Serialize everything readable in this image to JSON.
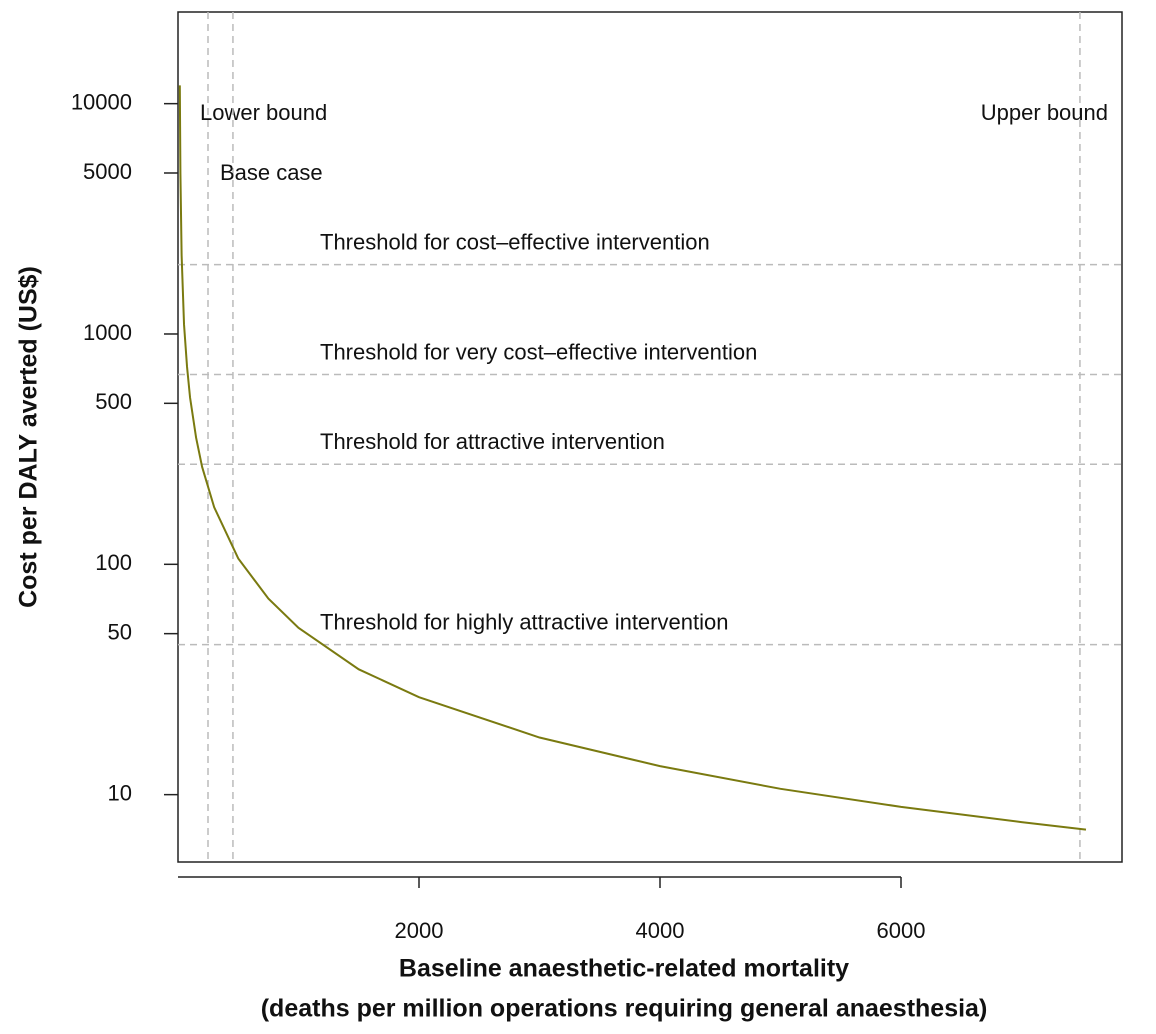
{
  "chart_data": {
    "type": "line",
    "xlabel": [
      "Baseline anaesthetic-related mortality",
      "(deaths per million operations requiring general anaesthesia)"
    ],
    "ylabel": "Cost per DALY averted (US$)",
    "x": [
      15,
      20,
      30,
      50,
      75,
      100,
      150,
      200,
      300,
      500,
      750,
      1000,
      1500,
      2000,
      3000,
      4000,
      5000,
      6000,
      7000,
      7535
    ],
    "series": [
      {
        "color": "#7a7a10",
        "values": [
          12000,
          5000,
          2200,
          1100,
          720,
          530,
          355,
          265,
          177,
          106,
          71,
          53,
          35,
          26.5,
          17.7,
          13.3,
          10.6,
          8.85,
          7.6,
          7.05
        ]
      }
    ],
    "xlim": [
      0,
      7834
    ],
    "xticks": [
      2000,
      4000,
      6000
    ],
    "ylim": [
      5.1,
      25000
    ],
    "yticks": [
      10,
      50,
      100,
      500,
      1000,
      5000,
      10000
    ],
    "ylog": true,
    "vlines": [
      {
        "value": 249,
        "label": "Lower bound"
      },
      {
        "value": 456,
        "label": "Base case"
      },
      {
        "value": 7485,
        "label": "Upper bound"
      }
    ],
    "hlines": [
      {
        "value": 2000,
        "label": "Threshold for cost–effective intervention"
      },
      {
        "value": 667,
        "label": "Threshold for very cost–effective intervention"
      },
      {
        "value": 272,
        "label": "Threshold for attractive intervention"
      },
      {
        "value": 44.8,
        "label": "Threshold for highly attractive intervention"
      }
    ]
  }
}
